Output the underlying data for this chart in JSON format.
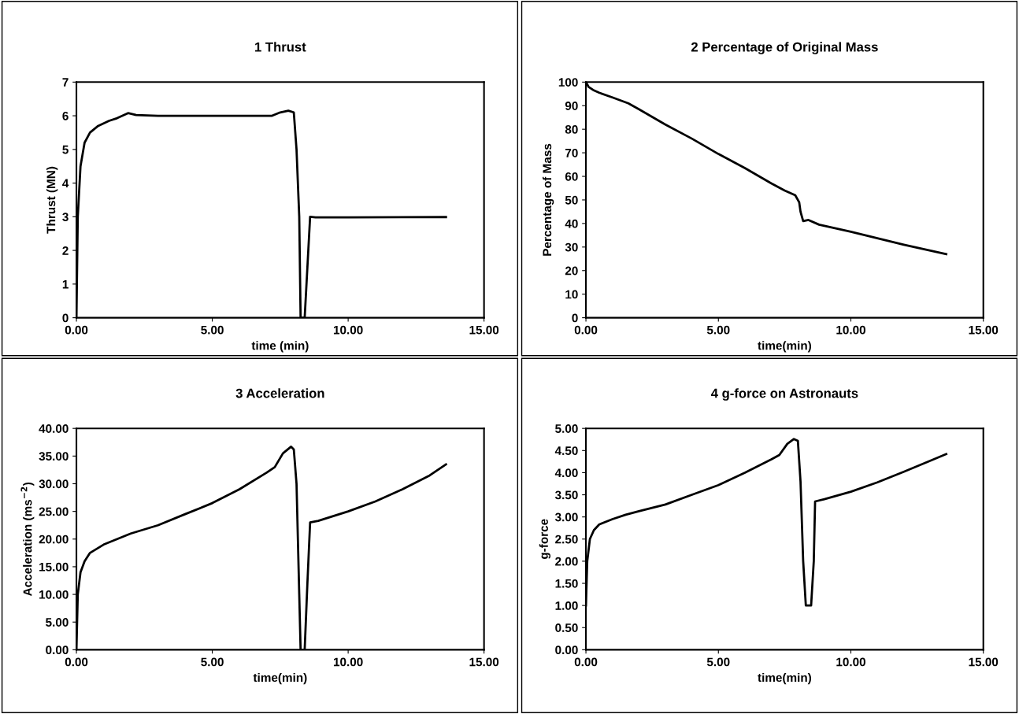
{
  "chart_data": [
    {
      "type": "line",
      "title": "1 Thrust",
      "xlabel": "time (min)",
      "ylabel": "Thrust (MN)",
      "xlim": [
        0,
        15
      ],
      "xticks": [
        {
          "value": 0,
          "label": "0.00"
        },
        {
          "value": 5,
          "label": "5.00"
        },
        {
          "value": 10,
          "label": "10.00"
        },
        {
          "value": 15,
          "label": "15.00"
        }
      ],
      "ylim": [
        0,
        7
      ],
      "yticks": [
        0,
        1,
        2,
        3,
        4,
        5,
        6,
        7
      ],
      "grid": false,
      "legend": false,
      "marker": "none",
      "line_style": "solid",
      "series": [
        {
          "color": "#000000",
          "x": [
            0,
            0.05,
            0.15,
            0.3,
            0.5,
            0.8,
            1.2,
            1.5,
            1.9,
            2.2,
            3,
            5,
            7.2,
            7.5,
            7.8,
            8.0,
            8.1,
            8.2,
            8.25,
            8.4,
            8.5,
            8.6,
            8.8,
            10,
            13.6
          ],
          "values": [
            0,
            3,
            4.5,
            5.2,
            5.5,
            5.7,
            5.85,
            5.93,
            6.08,
            6.02,
            6,
            6,
            6,
            6.1,
            6.15,
            6.1,
            5,
            3,
            0,
            0,
            1.5,
            3,
            2.98,
            2.98,
            2.99
          ]
        }
      ]
    },
    {
      "type": "line",
      "title": "2 Percentage of Original Mass",
      "xlabel": "time(min)",
      "ylabel": "Percentage of Mass",
      "xlim": [
        0,
        15
      ],
      "xticks": [
        {
          "value": 0,
          "label": "0.00"
        },
        {
          "value": 5,
          "label": "5.00"
        },
        {
          "value": 10,
          "label": "10.00"
        },
        {
          "value": 15,
          "label": "15.00"
        }
      ],
      "ylim": [
        0,
        100
      ],
      "yticks": [
        0,
        10,
        20,
        30,
        40,
        50,
        60,
        70,
        80,
        90,
        100
      ],
      "grid": false,
      "legend": false,
      "marker": "none",
      "line_style": "solid",
      "series": [
        {
          "color": "#000000",
          "x": [
            0,
            0.1,
            0.3,
            0.5,
            1,
            1.6,
            2,
            3,
            4,
            5,
            6,
            7,
            7.5,
            7.9,
            8.05,
            8.1,
            8.2,
            8.4,
            8.8,
            10,
            12,
            13.6
          ],
          "values": [
            100,
            98,
            96.5,
            95.5,
            93.5,
            91,
            88.5,
            82,
            76,
            69.5,
            63.5,
            57,
            54,
            52,
            49,
            45,
            41,
            41.5,
            39.5,
            36.5,
            31,
            27
          ]
        }
      ]
    },
    {
      "type": "line",
      "title": "3 Acceleration",
      "xlabel": "time(min)",
      "ylabel": "Acceleration (ms$^{−2}$)",
      "xlim": [
        0,
        15
      ],
      "xticks": [
        {
          "value": 0,
          "label": "0.00"
        },
        {
          "value": 5,
          "label": "5.00"
        },
        {
          "value": 10,
          "label": "10.00"
        },
        {
          "value": 15,
          "label": "15.00"
        }
      ],
      "ylim": [
        0,
        40
      ],
      "yticks": [
        {
          "value": 0,
          "label": "0.00"
        },
        {
          "value": 5,
          "label": "5.00"
        },
        {
          "value": 10,
          "label": "10.00"
        },
        {
          "value": 15,
          "label": "15.00"
        },
        {
          "value": 20,
          "label": "20.00"
        },
        {
          "value": 25,
          "label": "25.00"
        },
        {
          "value": 30,
          "label": "30.00"
        },
        {
          "value": 35,
          "label": "35.00"
        },
        {
          "value": 40,
          "label": "40.00"
        }
      ],
      "grid": false,
      "legend": false,
      "marker": "none",
      "line_style": "solid",
      "series": [
        {
          "color": "#000000",
          "x": [
            0,
            0.05,
            0.15,
            0.3,
            0.5,
            1,
            1.5,
            2,
            3,
            4,
            5,
            6,
            7,
            7.3,
            7.6,
            7.9,
            8.0,
            8.1,
            8.2,
            8.25,
            8.4,
            8.5,
            8.6,
            8.9,
            10,
            11,
            12,
            13,
            13.6
          ],
          "values": [
            0,
            10,
            14,
            16,
            17.5,
            19,
            20,
            21,
            22.5,
            24.5,
            26.5,
            29,
            32,
            33,
            35.5,
            36.7,
            36.2,
            30,
            10,
            0,
            0,
            12,
            23,
            23.3,
            25,
            26.8,
            29,
            31.5,
            33.5
          ]
        }
      ]
    },
    {
      "type": "line",
      "title": "4 g-force on Astronauts",
      "xlabel": "time(min)",
      "ylabel": "g-force",
      "xlim": [
        0,
        15
      ],
      "xticks": [
        {
          "value": 0,
          "label": "0.00"
        },
        {
          "value": 5,
          "label": "5.00"
        },
        {
          "value": 10,
          "label": "10.00"
        },
        {
          "value": 15,
          "label": "15.00"
        }
      ],
      "ylim": [
        0,
        5
      ],
      "yticks": [
        {
          "value": 0,
          "label": "0.00"
        },
        {
          "value": 0.5,
          "label": "0.50"
        },
        {
          "value": 1,
          "label": "1.00"
        },
        {
          "value": 1.5,
          "label": "1.50"
        },
        {
          "value": 2,
          "label": "2.00"
        },
        {
          "value": 2.5,
          "label": "2.50"
        },
        {
          "value": 3,
          "label": "3.00"
        },
        {
          "value": 3.5,
          "label": "3.50"
        },
        {
          "value": 4,
          "label": "4.00"
        },
        {
          "value": 4.5,
          "label": "4.50"
        },
        {
          "value": 5,
          "label": "5.00"
        }
      ],
      "grid": false,
      "legend": false,
      "marker": "none",
      "line_style": "solid",
      "series": [
        {
          "color": "#000000",
          "x": [
            0,
            0.05,
            0.15,
            0.3,
            0.5,
            1,
            1.5,
            2,
            3,
            4,
            5,
            6,
            7,
            7.3,
            7.6,
            7.85,
            8.0,
            8.1,
            8.2,
            8.3,
            8.5,
            8.6,
            8.65,
            9,
            10,
            11,
            12,
            13,
            13.6
          ],
          "values": [
            1,
            2,
            2.5,
            2.7,
            2.83,
            2.95,
            3.05,
            3.13,
            3.28,
            3.5,
            3.72,
            4,
            4.3,
            4.4,
            4.65,
            4.76,
            4.72,
            3.8,
            2,
            1,
            1,
            2,
            3.35,
            3.4,
            3.57,
            3.78,
            4.02,
            4.27,
            4.42
          ]
        }
      ]
    }
  ]
}
